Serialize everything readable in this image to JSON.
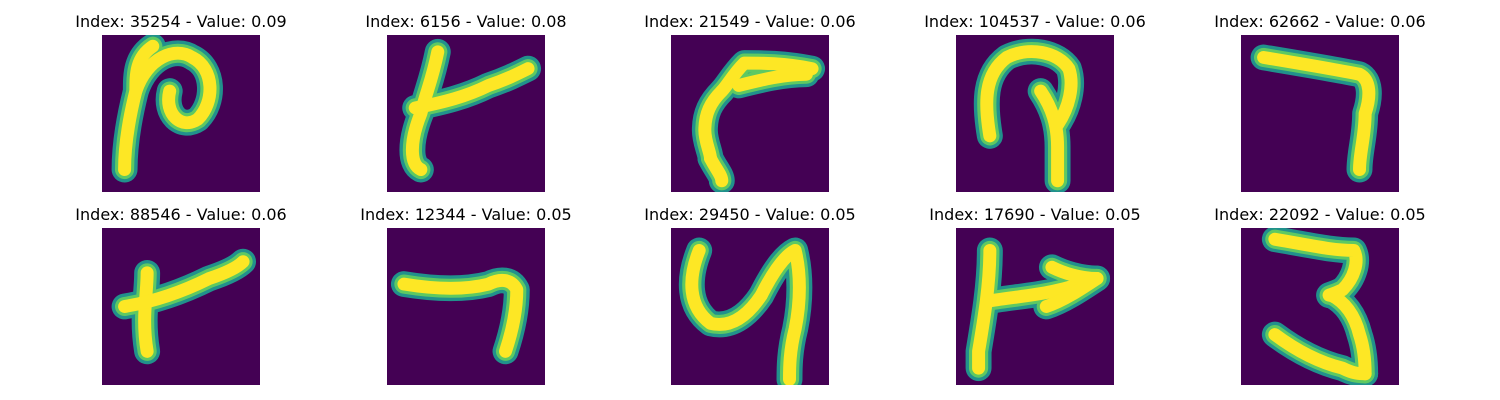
{
  "colors": {
    "background": "#440154",
    "stroke_core": "#fde725",
    "stroke_mid": "#5ec962",
    "stroke_edge": "#21918c"
  },
  "panels": [
    {
      "title": "Index: 35254 - Value: 0.09",
      "image_icon": "handwritten-stroke-icon"
    },
    {
      "title": "Index: 6156 - Value: 0.08",
      "image_icon": "handwritten-stroke-icon"
    },
    {
      "title": "Index: 21549 - Value: 0.06",
      "image_icon": "handwritten-stroke-icon"
    },
    {
      "title": "Index: 104537 - Value: 0.06",
      "image_icon": "handwritten-stroke-icon"
    },
    {
      "title": "Index: 62662 - Value: 0.06",
      "image_icon": "handwritten-stroke-icon"
    },
    {
      "title": "Index: 88546 - Value: 0.06",
      "image_icon": "handwritten-stroke-icon"
    },
    {
      "title": "Index: 12344 - Value: 0.05",
      "image_icon": "handwritten-stroke-icon"
    },
    {
      "title": "Index: 29450 - Value: 0.05",
      "image_icon": "handwritten-stroke-icon"
    },
    {
      "title": "Index: 17690 - Value: 0.05",
      "image_icon": "handwritten-stroke-icon"
    },
    {
      "title": "Index: 22092 - Value: 0.05",
      "image_icon": "handwritten-stroke-icon"
    }
  ]
}
